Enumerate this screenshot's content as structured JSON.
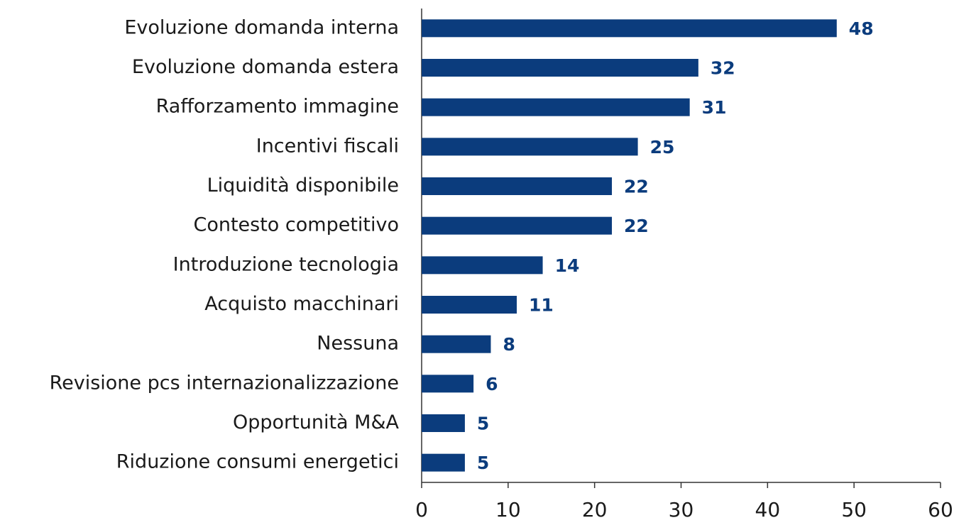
{
  "chart_data": {
    "type": "bar",
    "orientation": "horizontal",
    "categories": [
      "Evoluzione domanda interna",
      "Evoluzione domanda estera",
      "Rafforzamento immagine",
      "Incentivi fiscali",
      "Liquidità disponibile",
      "Contesto competitivo",
      "Introduzione tecnologia",
      "Acquisto macchinari",
      "Nessuna",
      "Revisione pcs internazionalizzazione",
      "Opportunità M&A",
      "Riduzione consumi energetici"
    ],
    "values": [
      48,
      32,
      31,
      25,
      22,
      22,
      14,
      11,
      8,
      6,
      5,
      5
    ],
    "color": "#0b3c7d",
    "xlim": [
      0,
      60
    ],
    "xticks": [
      0,
      10,
      20,
      30,
      40,
      50,
      60
    ],
    "grid": false
  }
}
